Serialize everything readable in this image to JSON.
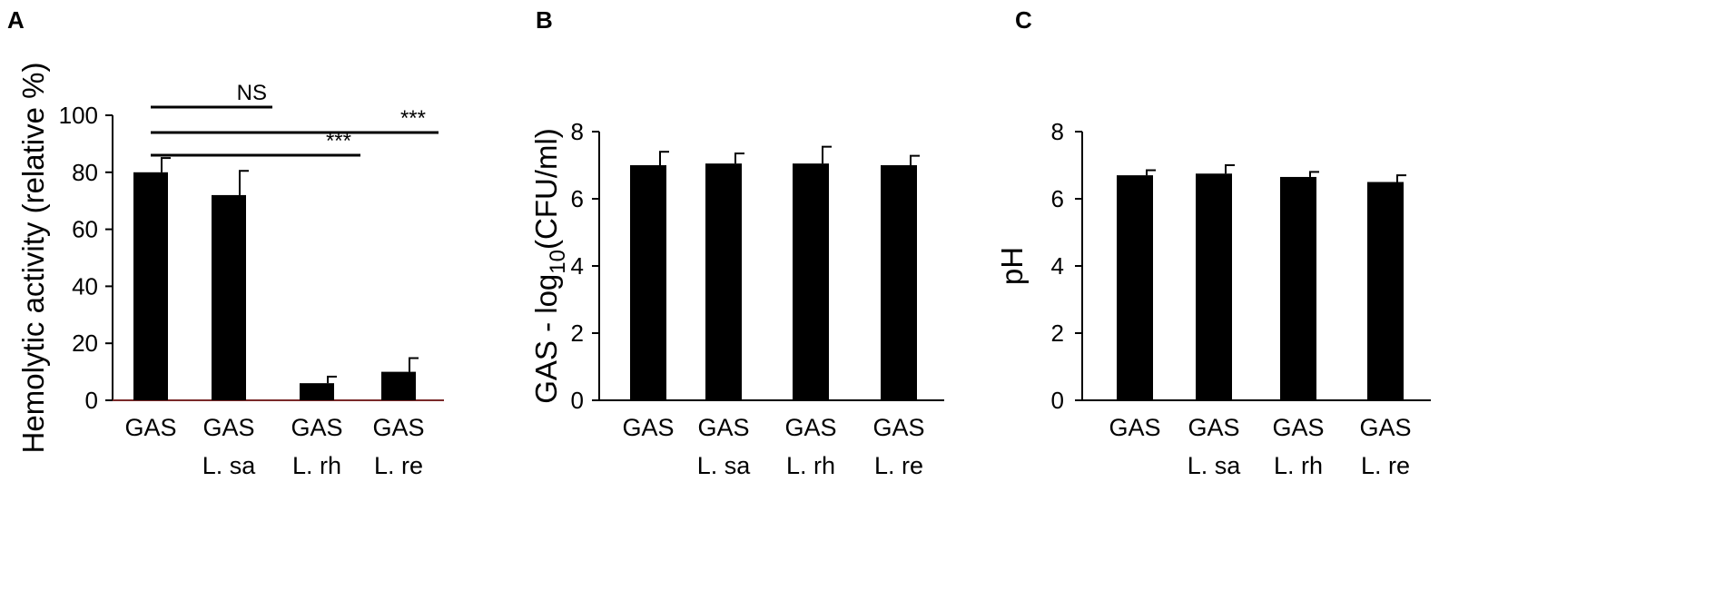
{
  "chart_data": [
    {
      "type": "bar",
      "panel_label": "A",
      "categories": [
        [
          "GAS"
        ],
        [
          "GAS",
          "L. sa"
        ],
        [
          "GAS",
          "L. rh"
        ],
        [
          "GAS",
          "L. re"
        ]
      ],
      "values": [
        80,
        72,
        6,
        10
      ],
      "errors": [
        5,
        8.5,
        2.3,
        4.8
      ],
      "ylabel": "Hemolytic activity (relative %)",
      "ylim": [
        0,
        100
      ],
      "yticks": [
        0,
        20,
        40,
        60,
        80,
        100
      ],
      "significance": [
        {
          "from": 0,
          "to": 1,
          "label": "NS"
        },
        {
          "from": 0,
          "to": 3,
          "label": "***"
        },
        {
          "from": 0,
          "to": 2,
          "label": "***"
        }
      ]
    },
    {
      "type": "bar",
      "panel_label": "B",
      "categories": [
        [
          "GAS"
        ],
        [
          "GAS",
          "L. sa"
        ],
        [
          "GAS",
          "L. rh"
        ],
        [
          "GAS",
          "L. re"
        ]
      ],
      "values": [
        7.0,
        7.05,
        7.05,
        7.0
      ],
      "errors": [
        0.4,
        0.3,
        0.5,
        0.28
      ],
      "ylabel_parts": [
        "GAS - log",
        "10",
        "(CFU/ml)"
      ],
      "ylim": [
        0,
        8
      ],
      "yticks": [
        0,
        2,
        4,
        6,
        8
      ]
    },
    {
      "type": "bar",
      "panel_label": "C",
      "categories": [
        [
          "GAS"
        ],
        [
          "GAS",
          "L. sa"
        ],
        [
          "GAS",
          "L. rh"
        ],
        [
          "GAS",
          "L. re"
        ]
      ],
      "values": [
        6.7,
        6.75,
        6.65,
        6.5
      ],
      "errors": [
        0.15,
        0.25,
        0.15,
        0.2
      ],
      "ylabel": "pH",
      "ylim": [
        0,
        8
      ],
      "yticks": [
        0,
        2,
        4,
        6,
        8
      ]
    }
  ],
  "colors": {
    "bar": "#000000",
    "axis": "#000000",
    "baseline_a": "#7a2a2a"
  }
}
